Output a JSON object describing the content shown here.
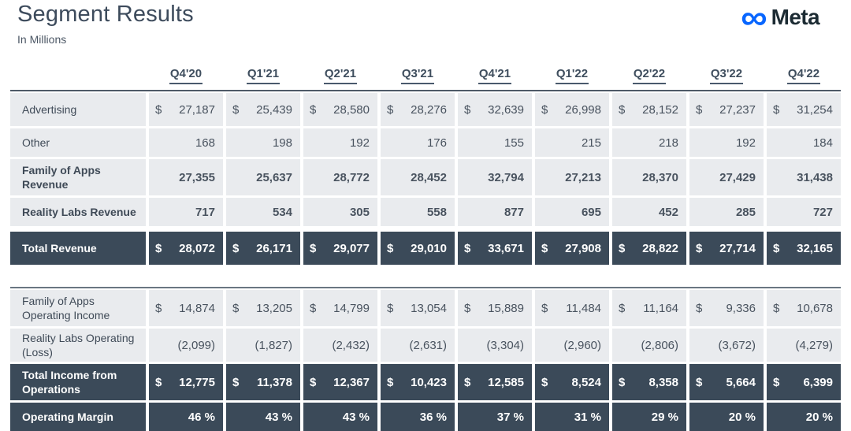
{
  "header": {
    "title": "Segment Results",
    "subtitle": "In Millions",
    "logo_wordmark": "Meta",
    "logo_color": "#0866ff"
  },
  "currency_symbol": "$",
  "columns": [
    "Q4'20",
    "Q1'21",
    "Q2'21",
    "Q3'21",
    "Q4'21",
    "Q1'22",
    "Q2'22",
    "Q3'22",
    "Q4'22"
  ],
  "colors": {
    "light_row": "#e9ebee",
    "dark_row": "#3b4a59",
    "text": "#3f4a57"
  },
  "tables": [
    {
      "name": "revenue",
      "rows": [
        {
          "label": "Advertising",
          "dollar": true,
          "bold": false,
          "dark": false,
          "values": [
            "27,187",
            "25,439",
            "28,580",
            "28,276",
            "32,639",
            "26,998",
            "28,152",
            "27,237",
            "31,254"
          ]
        },
        {
          "label": "Other",
          "dollar": false,
          "bold": false,
          "dark": false,
          "values": [
            "168",
            "198",
            "192",
            "176",
            "155",
            "215",
            "218",
            "192",
            "184"
          ]
        },
        {
          "label": "Family of Apps Revenue",
          "dollar": false,
          "bold": true,
          "dark": false,
          "values": [
            "27,355",
            "25,637",
            "28,772",
            "28,452",
            "32,794",
            "27,213",
            "28,370",
            "27,429",
            "31,438"
          ]
        },
        {
          "label": "Reality Labs Revenue",
          "dollar": false,
          "bold": true,
          "dark": false,
          "values": [
            "717",
            "534",
            "305",
            "558",
            "877",
            "695",
            "452",
            "285",
            "727"
          ]
        },
        {
          "label": "Total Revenue",
          "dollar": true,
          "bold": true,
          "dark": true,
          "gap_before": true,
          "values": [
            "28,072",
            "26,171",
            "29,077",
            "29,010",
            "33,671",
            "27,908",
            "28,822",
            "27,714",
            "32,165"
          ]
        }
      ]
    },
    {
      "name": "operations",
      "rows": [
        {
          "label": "Family of Apps Operating Income",
          "dollar": true,
          "bold": false,
          "dark": false,
          "values": [
            "14,874",
            "13,205",
            "14,799",
            "13,054",
            "15,889",
            "11,484",
            "11,164",
            "9,336",
            "10,678"
          ]
        },
        {
          "label": "Reality Labs Operating (Loss)",
          "dollar": false,
          "bold": false,
          "dark": false,
          "values": [
            "(2,099)",
            "(1,827)",
            "(2,432)",
            "(2,631)",
            "(3,304)",
            "(2,960)",
            "(2,806)",
            "(3,672)",
            "(4,279)"
          ]
        },
        {
          "label": "Total Income from Operations",
          "dollar": true,
          "bold": true,
          "dark": true,
          "values": [
            "12,775",
            "11,378",
            "12,367",
            "10,423",
            "12,585",
            "8,524",
            "8,358",
            "5,664",
            "6,399"
          ]
        },
        {
          "label": "Operating Margin",
          "dollar": false,
          "bold": true,
          "dark": true,
          "values": [
            "46 %",
            "43 %",
            "43 %",
            "36 %",
            "37 %",
            "31 %",
            "29 %",
            "20 %",
            "20 %"
          ]
        }
      ]
    }
  ]
}
